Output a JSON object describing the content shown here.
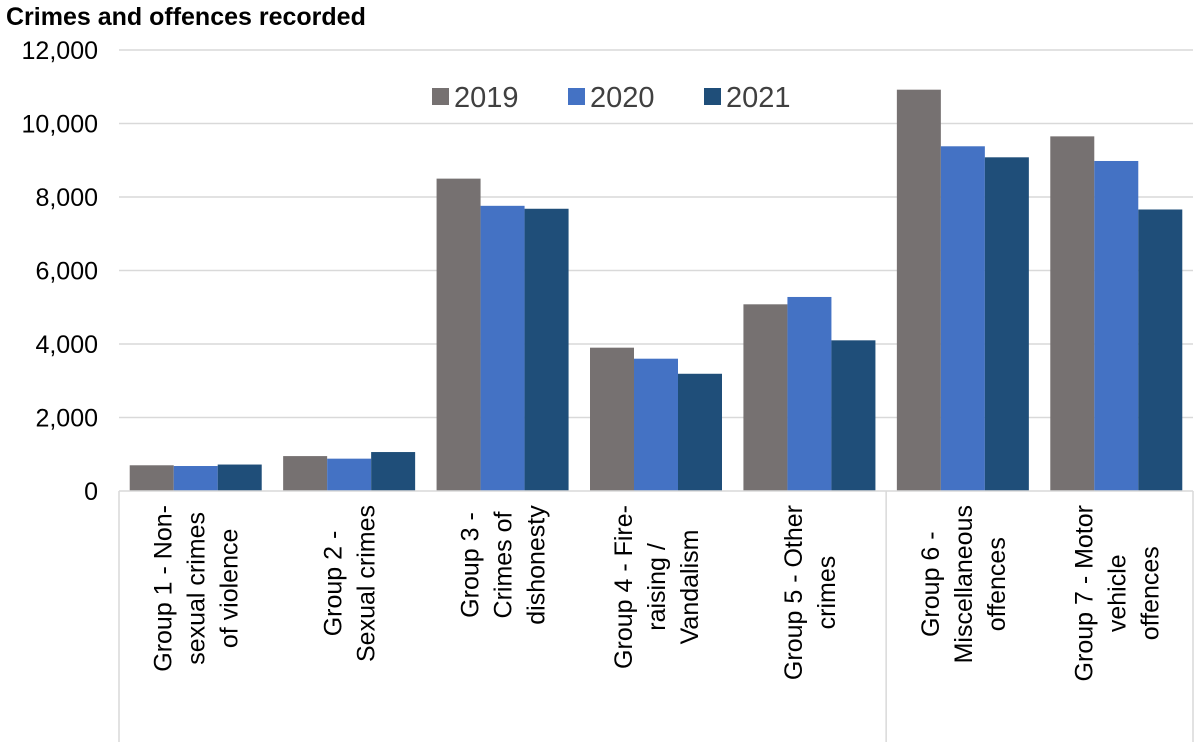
{
  "chart_data": {
    "type": "bar",
    "title": "Crimes and offences recorded",
    "xlabel": "",
    "ylabel": "",
    "ylim": [
      0,
      12000
    ],
    "yticks": [
      "0",
      "2,000",
      "4,000",
      "6,000",
      "8,000",
      "10,000",
      "12,000"
    ],
    "ytick_values": [
      0,
      2000,
      4000,
      6000,
      8000,
      10000,
      12000
    ],
    "grid": true,
    "legend_position": "top-center",
    "categories": [
      [
        "Group 1 - Non-",
        "sexual crimes",
        "of violence"
      ],
      [
        "Group 2 -",
        "Sexual crimes"
      ],
      [
        "Group 3 -",
        "Crimes of",
        "dishonesty"
      ],
      [
        "Group 4 - Fire-",
        "raising /",
        "Vandalism"
      ],
      [
        "Group 5 - Other",
        "crimes"
      ],
      [
        "Group 6 -",
        "Miscellaneous",
        "offences"
      ],
      [
        "Group 7 - Motor",
        "vehicle",
        "offences"
      ]
    ],
    "series": [
      {
        "name": "2019",
        "color": "#767171",
        "values": [
          700,
          950,
          8500,
          3900,
          5080,
          10920,
          9650
        ]
      },
      {
        "name": "2020",
        "color": "#4472c4",
        "values": [
          680,
          880,
          7760,
          3600,
          5280,
          9380,
          8980
        ]
      },
      {
        "name": "2021",
        "color": "#1f4e79",
        "values": [
          720,
          1060,
          7680,
          3190,
          4100,
          9080,
          7660
        ]
      }
    ]
  }
}
